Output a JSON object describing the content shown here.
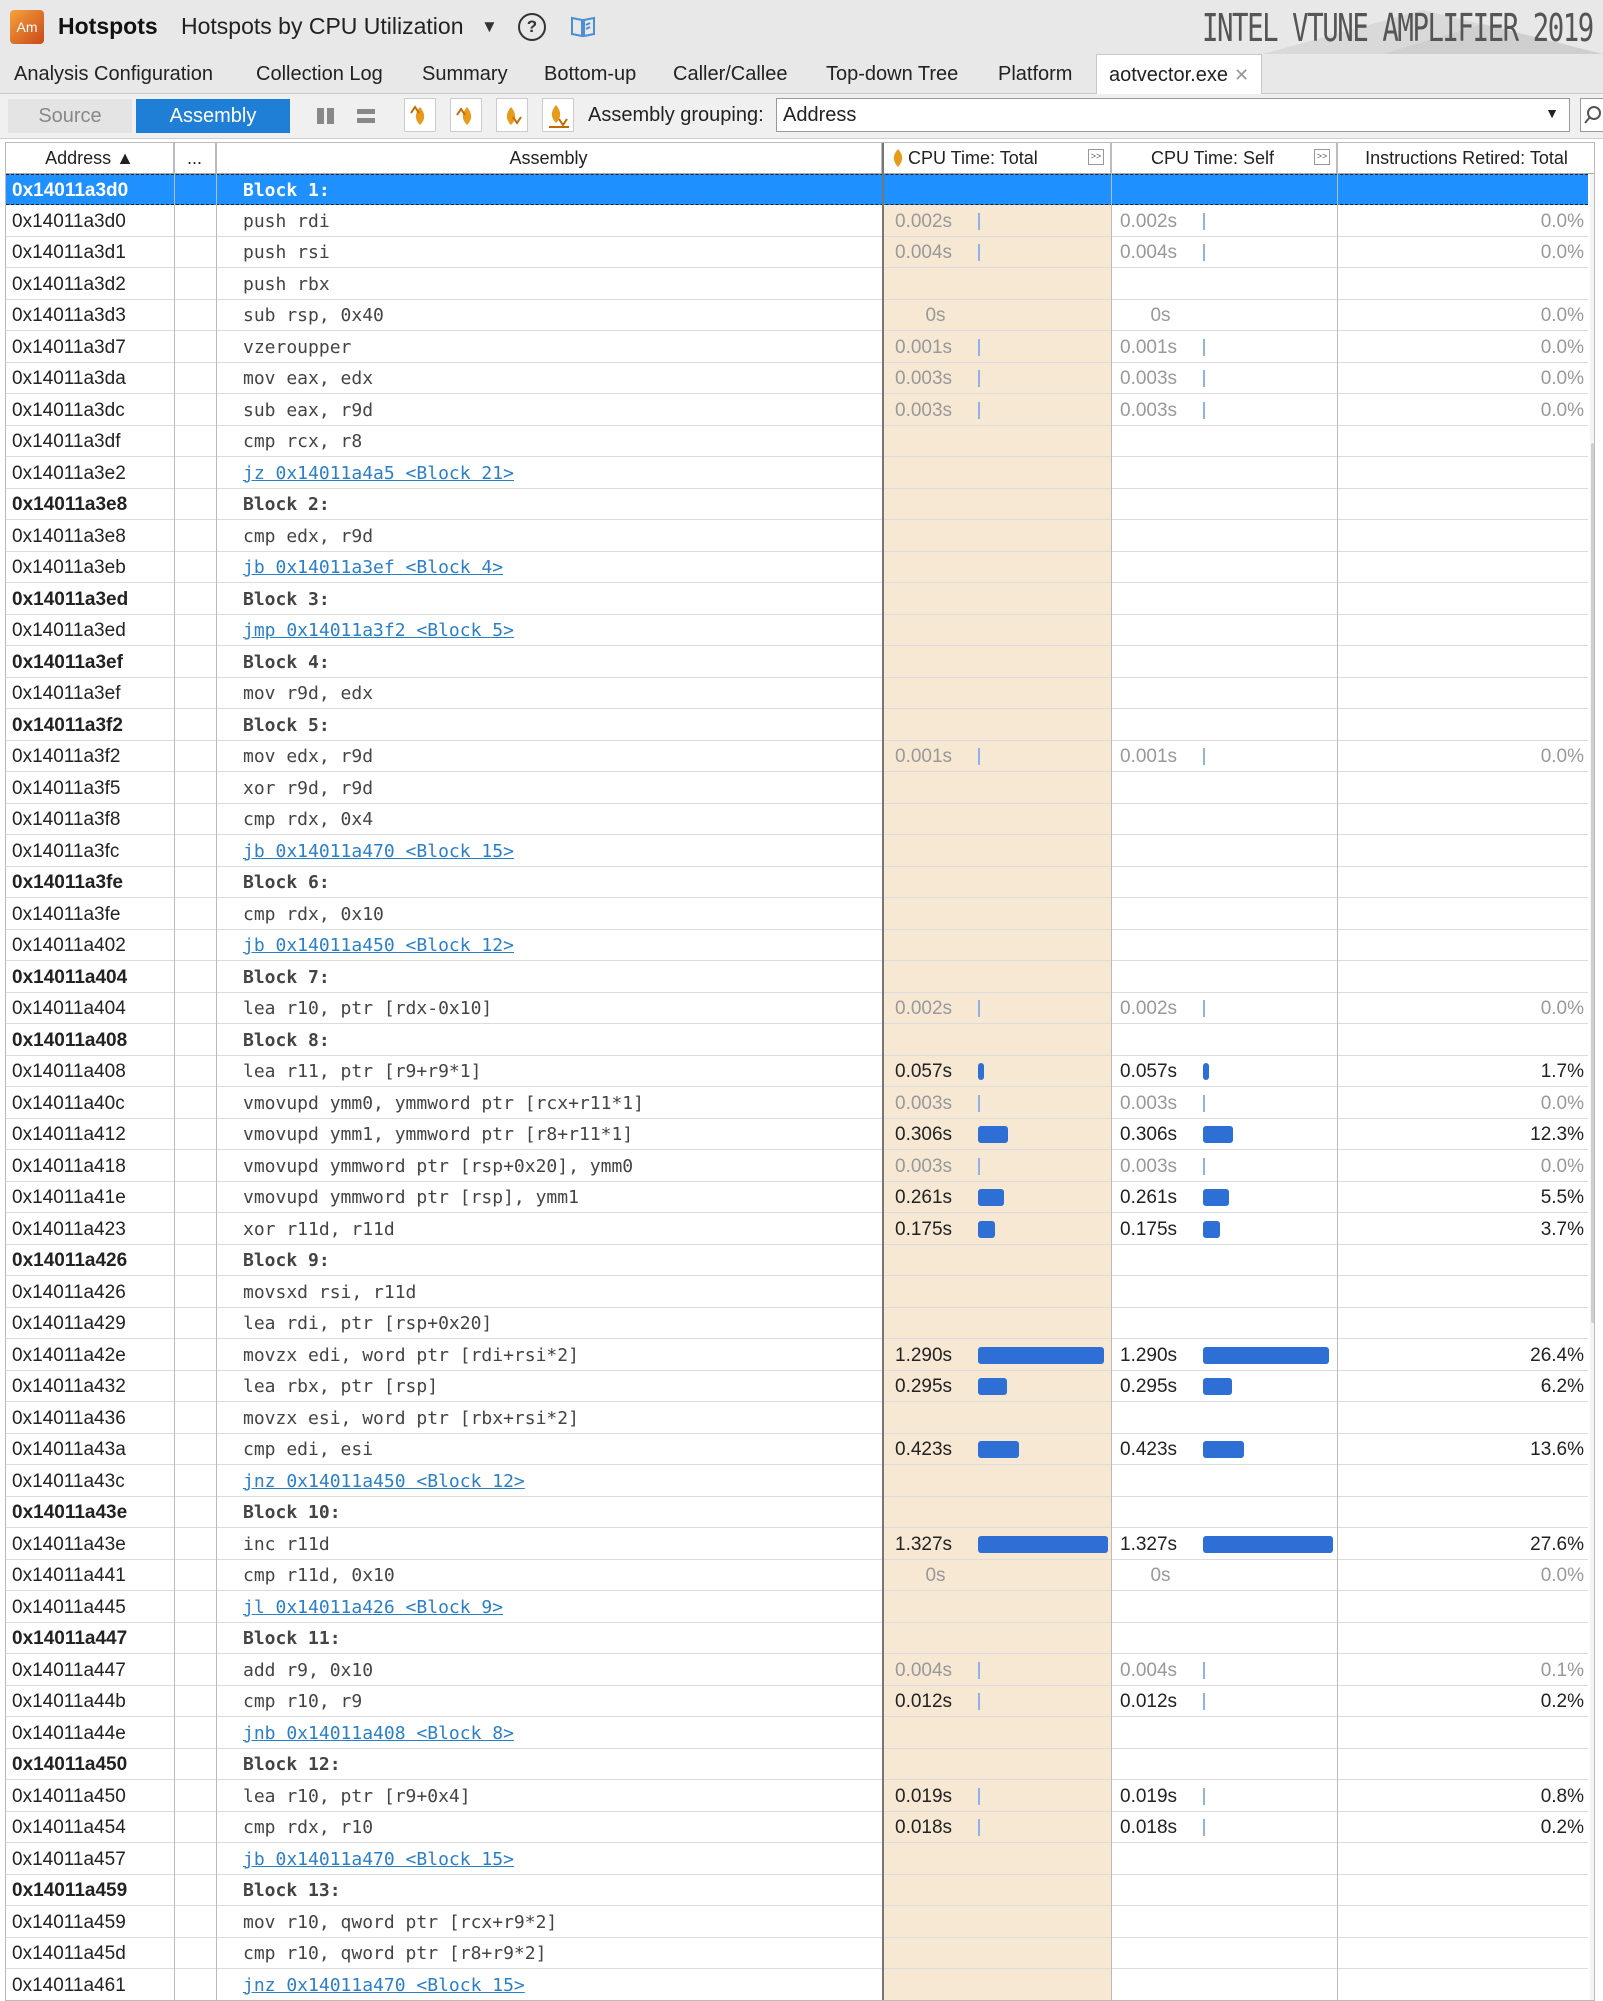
{
  "app": {
    "title": "Hotspots",
    "analysis": "Hotspots by CPU Utilization",
    "brand": "INTEL VTUNE AMPLIFIER 2019",
    "icon_name": "vtune-app-icon"
  },
  "tabs": [
    {
      "label": "Analysis Configuration"
    },
    {
      "label": "Collection Log"
    },
    {
      "label": "Summary"
    },
    {
      "label": "Bottom-up"
    },
    {
      "label": "Caller/Callee"
    },
    {
      "label": "Top-down Tree"
    },
    {
      "label": "Platform"
    },
    {
      "label": "aotvector.exe"
    }
  ],
  "toolbar": {
    "source_label": "Source",
    "assembly_label": "Assembly",
    "grouping_label": "Assembly grouping:",
    "grouping_value": "Address"
  },
  "columns": {
    "address": "Address ▲",
    "more": "...",
    "assembly": "Assembly",
    "cpu_total": "CPU Time: Total",
    "cpu_self": "CPU Time: Self",
    "instructions": "Instructions Retired: Total"
  },
  "colors": {
    "accent": "#1f7fd6",
    "selected_row": "#1e90ff",
    "bar": "#2e6fd6",
    "cpu_column_bg": "#f7e8d4"
  },
  "rows": [
    {
      "addr": "0x14011a3d0",
      "asm": "Block 1:",
      "block": true,
      "selected": true
    },
    {
      "addr": "0x14011a3d0",
      "asm": "push rdi",
      "total": "0.002s",
      "self": "0.002s",
      "inst": "0.0%",
      "v": 0.002
    },
    {
      "addr": "0x14011a3d1",
      "asm": "push rsi",
      "total": "0.004s",
      "self": "0.004s",
      "inst": "0.0%",
      "v": 0.004
    },
    {
      "addr": "0x14011a3d2",
      "asm": "push rbx"
    },
    {
      "addr": "0x14011a3d3",
      "asm": "sub rsp, 0x40",
      "total": "0s",
      "self": "0s",
      "inst": "0.0%",
      "v": 0
    },
    {
      "addr": "0x14011a3d7",
      "asm": "vzeroupper",
      "total": "0.001s",
      "self": "0.001s",
      "inst": "0.0%",
      "v": 0.001
    },
    {
      "addr": "0x14011a3da",
      "asm": "mov eax, edx",
      "total": "0.003s",
      "self": "0.003s",
      "inst": "0.0%",
      "v": 0.003
    },
    {
      "addr": "0x14011a3dc",
      "asm": "sub eax, r9d",
      "total": "0.003s",
      "self": "0.003s",
      "inst": "0.0%",
      "v": 0.003
    },
    {
      "addr": "0x14011a3df",
      "asm": "cmp rcx, r8"
    },
    {
      "addr": "0x14011a3e2",
      "asm": "jz 0x14011a4a5 <Block 21>",
      "link": true
    },
    {
      "addr": "0x14011a3e8",
      "asm": "Block 2:",
      "block": true
    },
    {
      "addr": "0x14011a3e8",
      "asm": "cmp edx, r9d"
    },
    {
      "addr": "0x14011a3eb",
      "asm": "jb 0x14011a3ef <Block 4>",
      "link": true
    },
    {
      "addr": "0x14011a3ed",
      "asm": "Block 3:",
      "block": true
    },
    {
      "addr": "0x14011a3ed",
      "asm": "jmp 0x14011a3f2 <Block 5>",
      "link": true
    },
    {
      "addr": "0x14011a3ef",
      "asm": "Block 4:",
      "block": true
    },
    {
      "addr": "0x14011a3ef",
      "asm": "mov r9d, edx"
    },
    {
      "addr": "0x14011a3f2",
      "asm": "Block 5:",
      "block": true
    },
    {
      "addr": "0x14011a3f2",
      "asm": "mov edx, r9d",
      "total": "0.001s",
      "self": "0.001s",
      "inst": "0.0%",
      "v": 0.001
    },
    {
      "addr": "0x14011a3f5",
      "asm": "xor r9d, r9d"
    },
    {
      "addr": "0x14011a3f8",
      "asm": "cmp rdx, 0x4"
    },
    {
      "addr": "0x14011a3fc",
      "asm": "jb 0x14011a470 <Block 15>",
      "link": true
    },
    {
      "addr": "0x14011a3fe",
      "asm": "Block 6:",
      "block": true
    },
    {
      "addr": "0x14011a3fe",
      "asm": "cmp rdx, 0x10"
    },
    {
      "addr": "0x14011a402",
      "asm": "jb 0x14011a450 <Block 12>",
      "link": true
    },
    {
      "addr": "0x14011a404",
      "asm": "Block 7:",
      "block": true
    },
    {
      "addr": "0x14011a404",
      "asm": "lea r10, ptr [rdx-0x10]",
      "total": "0.002s",
      "self": "0.002s",
      "inst": "0.0%",
      "v": 0.002
    },
    {
      "addr": "0x14011a408",
      "asm": "Block 8:",
      "block": true
    },
    {
      "addr": "0x14011a408",
      "asm": "lea r11, ptr [r9+r9*1]",
      "total": "0.057s",
      "self": "0.057s",
      "inst": "1.7%",
      "v": 0.057
    },
    {
      "addr": "0x14011a40c",
      "asm": "vmovupd ymm0, ymmword ptr [rcx+r11*1]",
      "total": "0.003s",
      "self": "0.003s",
      "inst": "0.0%",
      "v": 0.003
    },
    {
      "addr": "0x14011a412",
      "asm": "vmovupd ymm1, ymmword ptr [r8+r11*1]",
      "total": "0.306s",
      "self": "0.306s",
      "inst": "12.3%",
      "v": 0.306
    },
    {
      "addr": "0x14011a418",
      "asm": "vmovupd ymmword ptr [rsp+0x20], ymm0",
      "total": "0.003s",
      "self": "0.003s",
      "inst": "0.0%",
      "v": 0.003
    },
    {
      "addr": "0x14011a41e",
      "asm": "vmovupd ymmword ptr [rsp], ymm1",
      "total": "0.261s",
      "self": "0.261s",
      "inst": "5.5%",
      "v": 0.261
    },
    {
      "addr": "0x14011a423",
      "asm": "xor r11d, r11d",
      "total": "0.175s",
      "self": "0.175s",
      "inst": "3.7%",
      "v": 0.175
    },
    {
      "addr": "0x14011a426",
      "asm": "Block 9:",
      "block": true
    },
    {
      "addr": "0x14011a426",
      "asm": "movsxd rsi, r11d"
    },
    {
      "addr": "0x14011a429",
      "asm": "lea rdi, ptr [rsp+0x20]"
    },
    {
      "addr": "0x14011a42e",
      "asm": "movzx edi, word ptr [rdi+rsi*2]",
      "total": "1.290s",
      "self": "1.290s",
      "inst": "26.4%",
      "v": 1.29
    },
    {
      "addr": "0x14011a432",
      "asm": "lea rbx, ptr [rsp]",
      "total": "0.295s",
      "self": "0.295s",
      "inst": "6.2%",
      "v": 0.295
    },
    {
      "addr": "0x14011a436",
      "asm": "movzx esi, word ptr [rbx+rsi*2]"
    },
    {
      "addr": "0x14011a43a",
      "asm": "cmp edi, esi",
      "total": "0.423s",
      "self": "0.423s",
      "inst": "13.6%",
      "v": 0.423
    },
    {
      "addr": "0x14011a43c",
      "asm": "jnz 0x14011a450 <Block 12>",
      "link": true
    },
    {
      "addr": "0x14011a43e",
      "asm": "Block 10:",
      "block": true
    },
    {
      "addr": "0x14011a43e",
      "asm": "inc r11d",
      "total": "1.327s",
      "self": "1.327s",
      "inst": "27.6%",
      "v": 1.327
    },
    {
      "addr": "0x14011a441",
      "asm": "cmp r11d, 0x10",
      "total": "0s",
      "self": "0s",
      "inst": "0.0%",
      "v": 0
    },
    {
      "addr": "0x14011a445",
      "asm": "jl 0x14011a426 <Block 9>",
      "link": true
    },
    {
      "addr": "0x14011a447",
      "asm": "Block 11:",
      "block": true
    },
    {
      "addr": "0x14011a447",
      "asm": "add r9, 0x10",
      "total": "0.004s",
      "self": "0.004s",
      "inst": "0.1%",
      "v": 0.004
    },
    {
      "addr": "0x14011a44b",
      "asm": "cmp r10, r9",
      "total": "0.012s",
      "self": "0.012s",
      "inst": "0.2%",
      "v": 0.012
    },
    {
      "addr": "0x14011a44e",
      "asm": "jnb 0x14011a408 <Block 8>",
      "link": true
    },
    {
      "addr": "0x14011a450",
      "asm": "Block 12:",
      "block": true
    },
    {
      "addr": "0x14011a450",
      "asm": "lea r10, ptr [r9+0x4]",
      "total": "0.019s",
      "self": "0.019s",
      "inst": "0.8%",
      "v": 0.019
    },
    {
      "addr": "0x14011a454",
      "asm": "cmp rdx, r10",
      "total": "0.018s",
      "self": "0.018s",
      "inst": "0.2%",
      "v": 0.018
    },
    {
      "addr": "0x14011a457",
      "asm": "jb 0x14011a470 <Block 15>",
      "link": true
    },
    {
      "addr": "0x14011a459",
      "asm": "Block 13:",
      "block": true
    },
    {
      "addr": "0x14011a459",
      "asm": "mov r10, qword ptr [rcx+r9*2]"
    },
    {
      "addr": "0x14011a45d",
      "asm": "cmp r10, qword ptr [r8+r9*2]"
    },
    {
      "addr": "0x14011a461",
      "asm": "jnz 0x14011a470 <Block 15>",
      "link": true
    }
  ]
}
